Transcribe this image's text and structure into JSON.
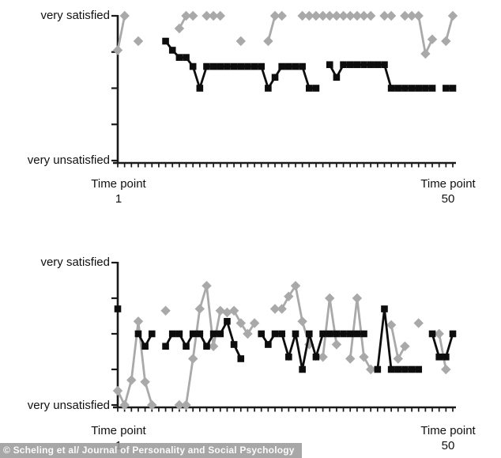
{
  "figure": {
    "background": "#ffffff",
    "axis_color": "#1a1a1a"
  },
  "credit": {
    "text": "© Scheling et al/ Journal of Personality and Social Psychology",
    "band_color": "#9b9b9b",
    "text_color": "#fbfbfb"
  },
  "chart_data": [
    {
      "type": "line",
      "position": "top",
      "title": "",
      "y_axis": {
        "top_label": "very satisfied",
        "bottom_label": "very unsatisfied",
        "range": [
          1,
          5
        ],
        "tick_count": 5,
        "scale_note": "1 = very unsatisfied, 5 = very satisfied"
      },
      "x_axis": {
        "label_left_line1": "Time point",
        "label_left_line2": "1",
        "label_right_line1": "Time point",
        "label_right_line2": "50",
        "range": [
          1,
          50
        ],
        "tick_count": 50
      },
      "series": [
        {
          "name": "gray-diamond-series",
          "marker": "diamond",
          "color": "#a9a9a9",
          "point_format": "[time_point, satisfaction_1to5]",
          "points": [
            [
              1,
              4.05
            ],
            [
              2,
              5.0
            ],
            [
              4,
              4.3
            ],
            [
              10,
              4.65
            ],
            [
              11,
              5.0
            ],
            [
              12,
              5.0
            ],
            [
              14,
              5.0
            ],
            [
              15,
              5.0
            ],
            [
              16,
              5.0
            ],
            [
              19,
              4.3
            ],
            [
              23,
              4.3
            ],
            [
              24,
              5.0
            ],
            [
              25,
              5.0
            ],
            [
              28,
              5.0
            ],
            [
              29,
              5.0
            ],
            [
              30,
              5.0
            ],
            [
              31,
              5.0
            ],
            [
              32,
              5.0
            ],
            [
              33,
              5.0
            ],
            [
              34,
              5.0
            ],
            [
              35,
              5.0
            ],
            [
              36,
              5.0
            ],
            [
              37,
              5.0
            ],
            [
              38,
              5.0
            ],
            [
              40,
              5.0
            ],
            [
              41,
              5.0
            ],
            [
              43,
              5.0
            ],
            [
              44,
              5.0
            ],
            [
              45,
              5.0
            ],
            [
              46,
              3.95
            ],
            [
              47,
              4.35
            ],
            [
              49,
              4.3
            ],
            [
              50,
              5.0
            ]
          ]
        },
        {
          "name": "black-square-series",
          "marker": "square",
          "color": "#0d0d0d",
          "point_format": "[time_point, satisfaction_1to5]",
          "points": [
            [
              8,
              4.3
            ],
            [
              9,
              4.05
            ],
            [
              10,
              3.85
            ],
            [
              11,
              3.85
            ],
            [
              12,
              3.6
            ],
            [
              13,
              3.0
            ],
            [
              14,
              3.6
            ],
            [
              15,
              3.6
            ],
            [
              16,
              3.6
            ],
            [
              17,
              3.6
            ],
            [
              18,
              3.6
            ],
            [
              19,
              3.6
            ],
            [
              20,
              3.6
            ],
            [
              21,
              3.6
            ],
            [
              22,
              3.6
            ],
            [
              23,
              3.0
            ],
            [
              24,
              3.3
            ],
            [
              25,
              3.6
            ],
            [
              26,
              3.6
            ],
            [
              27,
              3.6
            ],
            [
              28,
              3.6
            ],
            [
              29,
              3.0
            ],
            [
              30,
              3.0
            ],
            [
              32,
              3.65
            ],
            [
              33,
              3.3
            ],
            [
              34,
              3.65
            ],
            [
              35,
              3.65
            ],
            [
              36,
              3.65
            ],
            [
              37,
              3.65
            ],
            [
              38,
              3.65
            ],
            [
              39,
              3.65
            ],
            [
              40,
              3.65
            ],
            [
              41,
              3.0
            ],
            [
              42,
              3.0
            ],
            [
              43,
              3.0
            ],
            [
              44,
              3.0
            ],
            [
              45,
              3.0
            ],
            [
              46,
              3.0
            ],
            [
              47,
              3.0
            ],
            [
              49,
              3.0
            ],
            [
              50,
              3.0
            ]
          ]
        }
      ]
    },
    {
      "type": "line",
      "position": "bottom",
      "title": "",
      "y_axis": {
        "top_label": "very satisfied",
        "bottom_label": "very unsatisfied",
        "range": [
          1,
          5
        ],
        "tick_count": 5,
        "scale_note": "1 = very unsatisfied, 5 = very satisfied"
      },
      "x_axis": {
        "label_left_line1": "Time point",
        "label_left_line2": "1",
        "label_right_line1": "Time point",
        "label_right_line2": "50",
        "range": [
          1,
          50
        ],
        "tick_count": 50
      },
      "series": [
        {
          "name": "gray-diamond-series",
          "marker": "diamond",
          "color": "#a9a9a9",
          "point_format": "[time_point, satisfaction_1to5]",
          "points": [
            [
              1,
              1.4
            ],
            [
              2,
              1.0
            ],
            [
              3,
              1.7
            ],
            [
              4,
              3.35
            ],
            [
              5,
              1.65
            ],
            [
              6,
              1.0
            ],
            [
              8,
              3.65
            ],
            [
              10,
              1.0
            ],
            [
              11,
              1.0
            ],
            [
              12,
              2.3
            ],
            [
              13,
              3.7
            ],
            [
              14,
              4.35
            ],
            [
              15,
              2.65
            ],
            [
              16,
              3.65
            ],
            [
              17,
              3.6
            ],
            [
              18,
              3.65
            ],
            [
              19,
              3.3
            ],
            [
              20,
              3.0
            ],
            [
              21,
              3.3
            ],
            [
              24,
              3.7
            ],
            [
              25,
              3.7
            ],
            [
              26,
              4.05
            ],
            [
              27,
              4.35
            ],
            [
              28,
              3.35
            ],
            [
              29,
              2.7
            ],
            [
              31,
              2.35
            ],
            [
              32,
              4.0
            ],
            [
              33,
              2.7
            ],
            [
              35,
              2.3
            ],
            [
              36,
              4.0
            ],
            [
              37,
              2.35
            ],
            [
              38,
              2.0
            ],
            [
              41,
              3.25
            ],
            [
              42,
              2.3
            ],
            [
              43,
              2.65
            ],
            [
              45,
              3.3
            ],
            [
              48,
              3.0
            ],
            [
              49,
              2.0
            ]
          ]
        },
        {
          "name": "black-square-series",
          "marker": "square",
          "color": "#0d0d0d",
          "point_format": "[time_point, satisfaction_1to5]",
          "points": [
            [
              1,
              3.7
            ],
            [
              4,
              3.0
            ],
            [
              5,
              2.65
            ],
            [
              6,
              3.0
            ],
            [
              8,
              2.65
            ],
            [
              9,
              3.0
            ],
            [
              10,
              3.0
            ],
            [
              11,
              2.65
            ],
            [
              12,
              3.0
            ],
            [
              13,
              3.0
            ],
            [
              14,
              2.65
            ],
            [
              15,
              3.0
            ],
            [
              16,
              3.0
            ],
            [
              17,
              3.35
            ],
            [
              18,
              2.7
            ],
            [
              19,
              2.3
            ],
            [
              22,
              3.0
            ],
            [
              23,
              2.7
            ],
            [
              24,
              3.0
            ],
            [
              25,
              3.0
            ],
            [
              26,
              2.35
            ],
            [
              27,
              3.0
            ],
            [
              28,
              2.0
            ],
            [
              29,
              3.0
            ],
            [
              30,
              2.35
            ],
            [
              31,
              3.0
            ],
            [
              32,
              3.0
            ],
            [
              33,
              3.0
            ],
            [
              34,
              3.0
            ],
            [
              35,
              3.0
            ],
            [
              36,
              3.0
            ],
            [
              37,
              3.0
            ],
            [
              39,
              2.0
            ],
            [
              40,
              3.7
            ],
            [
              41,
              2.0
            ],
            [
              42,
              2.0
            ],
            [
              43,
              2.0
            ],
            [
              44,
              2.0
            ],
            [
              45,
              2.0
            ],
            [
              47,
              3.0
            ],
            [
              48,
              2.35
            ],
            [
              49,
              2.35
            ],
            [
              50,
              3.0
            ]
          ]
        }
      ]
    }
  ]
}
